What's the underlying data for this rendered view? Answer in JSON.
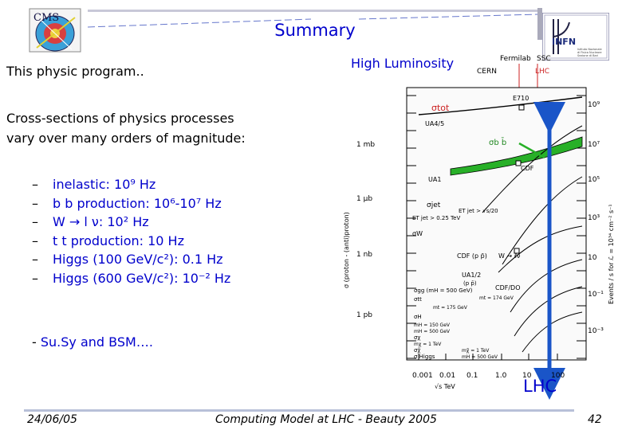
{
  "header": {
    "title": "Summary",
    "subtitle": "This physic program..",
    "right_title": "High Luminosity"
  },
  "intro": {
    "line1": "Cross-sections of physics  processes",
    "line2": "vary over many orders of magnitude:"
  },
  "bullets": [
    {
      "dash": "–",
      "text": "inelastic: 10⁹ Hz"
    },
    {
      "dash": "–",
      "text": "b b production: 10⁶-10⁷ Hz"
    },
    {
      "dash": "–",
      "text": "W → l ν: 10² Hz"
    },
    {
      "dash": "–",
      "text": "t t production: 10 Hz"
    },
    {
      "dash": "–",
      "text": "Higgs (100 GeV/c²): 0.1 Hz"
    },
    {
      "dash": "–",
      "text": "Higgs (600 GeV/c²): 10⁻² Hz"
    }
  ],
  "bsm": {
    "dash": "-",
    "text": "Su.Sy and BSM…."
  },
  "logos": {
    "cms": "CMS",
    "infn": "INFN",
    "infn_sub1": "Istituto Nazionale",
    "infn_sub2": "di Fisica Nucleare",
    "infn_sub3": "Sezione di Bari"
  },
  "chart_data": {
    "type": "line",
    "xlabel": "√s   TeV",
    "ylabel": "σ (proton - (anti)proton)",
    "ylabel_right": "Events / s  for  ℒ = 10³⁴ cm⁻² s⁻¹",
    "x_ticks": [
      "0.001",
      "0.01",
      "0.1",
      "1.0",
      "10",
      "100"
    ],
    "y_ticks_left": [
      "1 mb",
      "1 μb",
      "1 nb",
      "1 pb"
    ],
    "y_ticks_right": [
      "10⁹",
      "10⁷",
      "10⁵",
      "10³",
      "10",
      "10⁻¹",
      "10⁻³"
    ],
    "top_labels": [
      "Fermilab",
      "SSC",
      "CERN",
      "LHC"
    ],
    "annotations": [
      "σtot",
      "E710",
      "UA4/5",
      "σb b̄",
      "CDF",
      "UA1",
      "σjet",
      "ET jet > √s/20",
      "ET jet > 0.25 TeV",
      "σW",
      "CDF (p p̄)",
      "W → ℓν",
      "UA1/2",
      "(p p̄)",
      "CDF/DO",
      "σgg (mH = 500 GeV)",
      "σtt",
      "mt = 175 GeV",
      "mt = 174 GeV",
      "σH",
      "mH = 150 GeV",
      "mH = 500 GeV",
      "σχ",
      "mχ = 1 TeV",
      "σχ̃",
      "mχ̃ = 1 TeV",
      "σ Higgs",
      "mH = 500 GeV"
    ],
    "lhc_label": "LHC",
    "colors": {
      "accent": "#0000cc",
      "arrow": "#1a55c8",
      "band": "#22aa22"
    }
  },
  "footer": {
    "date": "24/06/05",
    "center": "Computing Model at LHC - Beauty 2005",
    "page": "42"
  }
}
